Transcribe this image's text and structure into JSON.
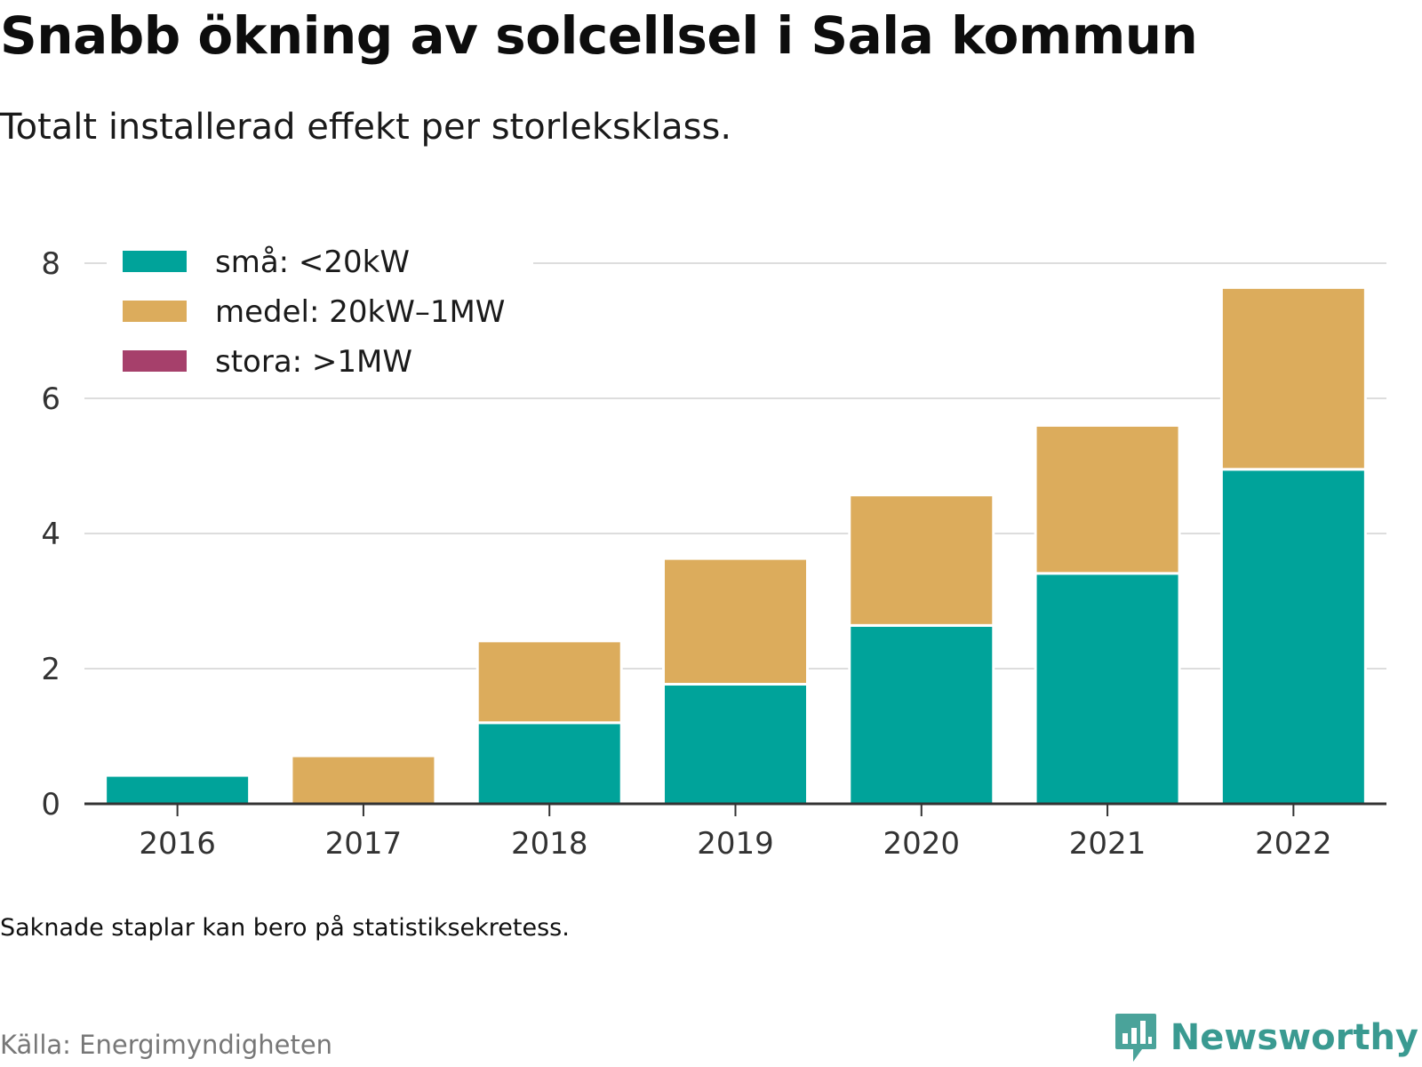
{
  "header": {
    "title": "Snabb ökning av solcellsel i Sala kommun",
    "subtitle": "Totalt installerad effekt per storleksklass."
  },
  "chart_data": {
    "type": "bar",
    "stacked": true,
    "categories": [
      "2016",
      "2017",
      "2018",
      "2019",
      "2020",
      "2021",
      "2022"
    ],
    "series": [
      {
        "name": "små: <20kW",
        "color": "#00a39a",
        "values": [
          0.42,
          0,
          1.2,
          1.77,
          2.64,
          3.41,
          4.95
        ]
      },
      {
        "name": "medel: 20kW–1MW",
        "color": "#dcac5c",
        "values": [
          0,
          0.71,
          1.21,
          1.86,
          1.93,
          2.19,
          2.69
        ]
      },
      {
        "name": "stora: >1MW",
        "color": "#a6406b",
        "values": [
          0,
          0,
          0,
          0,
          0,
          0,
          0
        ]
      }
    ],
    "ylim": [
      0,
      8
    ],
    "yticks": [
      0,
      2,
      4,
      6,
      8
    ],
    "grid": true,
    "legend_position": "top-left"
  },
  "footer": {
    "note": "Saknade staplar kan bero på statistiksekretess.",
    "source": "Källa: Energimyndigheten",
    "brand": "Newsworthy"
  },
  "colors": {
    "accent": "#3a9a91",
    "gridline": "#dddddd",
    "axis": "#333333"
  }
}
